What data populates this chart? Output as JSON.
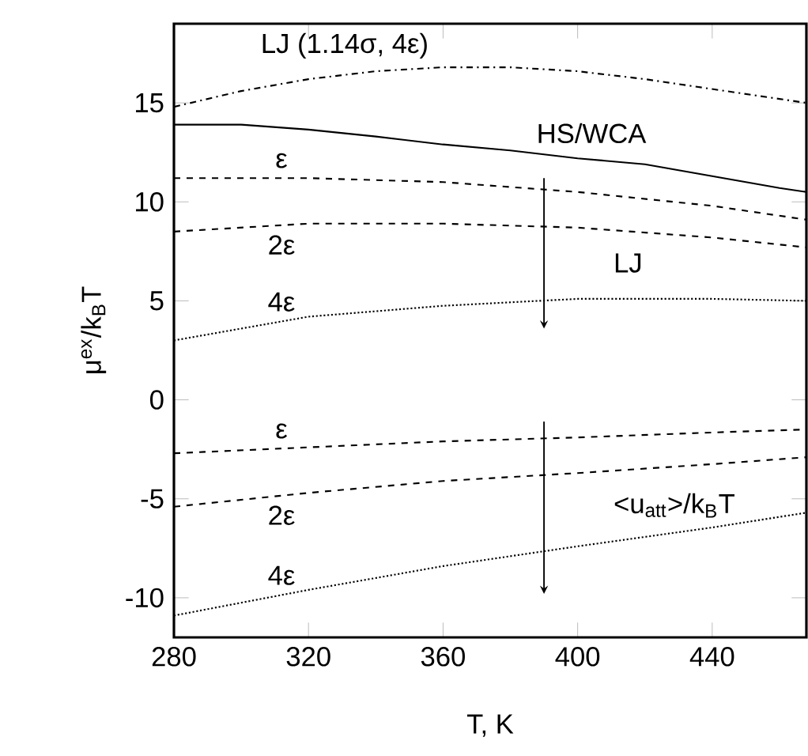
{
  "chart_data": {
    "type": "line",
    "xlabel": "T, K",
    "ylabel": "μ$^{ex}$/k$_{B}$T",
    "xlim": [
      280,
      468
    ],
    "ylim": [
      -12,
      19
    ],
    "xticks": [
      280,
      320,
      360,
      400,
      440
    ],
    "yticks": [
      -10,
      -5,
      0,
      5,
      10,
      15
    ],
    "grid": false,
    "legend": false,
    "marker": "none",
    "x": [
      280,
      300,
      320,
      340,
      360,
      380,
      400,
      420,
      440,
      460,
      468
    ],
    "series": [
      {
        "name": "LJ (1.14σ, 4ε)",
        "color": "#000000",
        "line_style": "dashdot",
        "values": [
          14.8,
          15.6,
          16.2,
          16.6,
          16.8,
          16.8,
          16.6,
          16.2,
          15.7,
          15.2,
          15.0
        ]
      },
      {
        "name": "HS/WCA",
        "color": "#000000",
        "line_style": "solid",
        "values": [
          13.9,
          13.9,
          13.65,
          13.3,
          12.9,
          12.6,
          12.2,
          11.9,
          11.3,
          10.7,
          10.5
        ]
      },
      {
        "name": "ε",
        "color": "#000000",
        "line_style": "dashed",
        "x": [
          280,
          320,
          360,
          400,
          440,
          468
        ],
        "values": [
          11.2,
          11.2,
          11.0,
          10.5,
          9.8,
          9.1
        ]
      },
      {
        "name": "2ε",
        "color": "#000000",
        "line_style": "dashed",
        "x": [
          280,
          320,
          360,
          400,
          440,
          468
        ],
        "values": [
          8.5,
          8.9,
          8.9,
          8.7,
          8.2,
          7.7
        ]
      },
      {
        "name": "4ε",
        "color": "#000000",
        "line_style": "dotted",
        "x": [
          280,
          320,
          360,
          400,
          440,
          468
        ],
        "values": [
          3.0,
          4.2,
          4.75,
          5.1,
          5.1,
          5.0
        ]
      },
      {
        "name": "ε",
        "color": "#000000",
        "line_style": "dashed",
        "x": [
          280,
          320,
          360,
          400,
          440,
          468
        ],
        "values": [
          -2.7,
          -2.4,
          -2.1,
          -1.9,
          -1.65,
          -1.5
        ]
      },
      {
        "name": "2ε",
        "color": "#000000",
        "line_style": "dashed",
        "x": [
          280,
          320,
          360,
          400,
          440,
          468
        ],
        "values": [
          -5.4,
          -4.7,
          -4.1,
          -3.7,
          -3.25,
          -2.9
        ]
      },
      {
        "name": "4ε",
        "color": "#000000",
        "line_style": "dotted",
        "x": [
          280,
          320,
          360,
          400,
          440,
          468
        ],
        "values": [
          -10.9,
          -9.6,
          -8.4,
          -7.4,
          -6.45,
          -5.7
        ]
      }
    ],
    "annotations": [
      "LJ",
      "<u$_{att}$>/k$_{B}$T"
    ]
  }
}
